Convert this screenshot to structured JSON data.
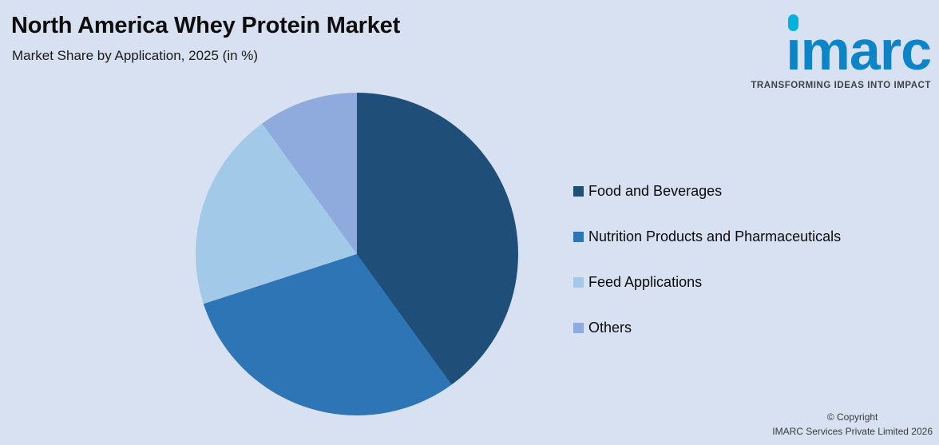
{
  "page": {
    "background": "#d8e1f2"
  },
  "header": {
    "title": "North America Whey Protein Market",
    "subtitle": "Market Share by Application, 2025 (in %)"
  },
  "logo": {
    "text": "imarc",
    "tagline": "TRANSFORMING IDEAS INTO IMPACT",
    "brand_blue": "#0b85c8",
    "accent_cyan": "#00b2dd"
  },
  "chart_data": {
    "type": "pie",
    "title": "North America Whey Protein Market",
    "subtitle": "Market Share by Application, 2025 (in %)",
    "categories": [
      "Food and Beverages",
      "Nutrition Products and Pharmaceuticals",
      "Feed Applications",
      "Others"
    ],
    "values": [
      40,
      30,
      20,
      10
    ],
    "unit": "%",
    "colors": [
      "#1f4e79",
      "#2e75b6",
      "#a3c9e9",
      "#8faadc"
    ],
    "start_angle_deg": 0,
    "direction": "clockwise",
    "legend_position": "right",
    "grid": false
  },
  "legend": {
    "items": [
      {
        "label": "Food and Beverages",
        "color": "#1f4e79"
      },
      {
        "label": "Nutrition Products and Pharmaceuticals",
        "color": "#2e75b6"
      },
      {
        "label": "Feed Applications",
        "color": "#a3c9e9"
      },
      {
        "label": "Others",
        "color": "#8faadc"
      }
    ]
  },
  "footer": {
    "copyright_line1": "© Copyright",
    "copyright_line2": "IMARC Services Private Limited 2026"
  }
}
